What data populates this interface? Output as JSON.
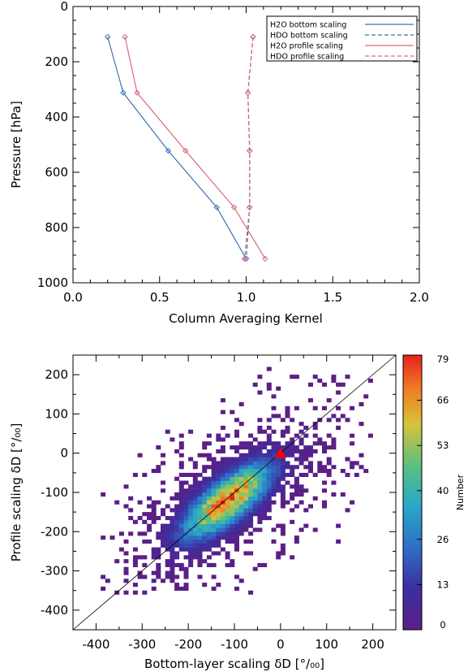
{
  "chart_data": [
    {
      "type": "line",
      "xlabel": "Column Averaging Kernel",
      "ylabel": "Pressure [hPa]",
      "xlim": [
        0.0,
        2.0
      ],
      "ylim": [
        1000,
        0
      ],
      "x_ticks": [
        "0.0",
        "0.5",
        "1.0",
        "1.5",
        "2.0"
      ],
      "y_ticks": [
        "0",
        "200",
        "400",
        "600",
        "800",
        "1000"
      ],
      "legend_position": "top-right",
      "pressure": [
        110,
        312,
        522,
        727,
        913
      ],
      "series": [
        {
          "name": "H2O bottom scaling",
          "color": "#3b73b0",
          "dash": "solid",
          "values": [
            0.2,
            0.29,
            0.55,
            0.83,
            1.0
          ]
        },
        {
          "name": "HDO bottom scaling",
          "color": "#3b73b0",
          "dash": "dashed",
          "values": [
            1.04,
            1.01,
            1.02,
            1.02,
            1.0
          ]
        },
        {
          "name": "H2O profile scaling",
          "color": "#d9687a",
          "dash": "solid",
          "values": [
            0.3,
            0.37,
            0.65,
            0.93,
            1.11
          ]
        },
        {
          "name": "HDO profile scaling",
          "color": "#d9687a",
          "dash": "dashed",
          "values": [
            1.04,
            1.01,
            1.02,
            1.02,
            0.99
          ]
        }
      ]
    },
    {
      "type": "heatmap",
      "xlabel": "Bottom-layer scaling δD [°/₀₀]",
      "ylabel": "Profile scaling δD [°/₀₀]",
      "xlim": [
        -450,
        250
      ],
      "ylim": [
        -450,
        250
      ],
      "x_ticks": [
        "-400",
        "-300",
        "-200",
        "-100",
        "0",
        "100",
        "200"
      ],
      "y_ticks": [
        "-400",
        "-300",
        "-200",
        "-100",
        "0",
        "100",
        "200"
      ],
      "bin_size": 10,
      "one_to_one_line": true,
      "marker": {
        "shape": "triangle",
        "color": "#ff0000",
        "x": 0,
        "y": 0
      },
      "colorbar": {
        "label": "Number",
        "ticks": [
          "0",
          "13",
          "26",
          "40",
          "53",
          "66",
          "79"
        ],
        "min": 0,
        "max": 79
      },
      "distribution": {
        "center_x": -115,
        "center_y": -120,
        "max_count": 79
      }
    }
  ]
}
